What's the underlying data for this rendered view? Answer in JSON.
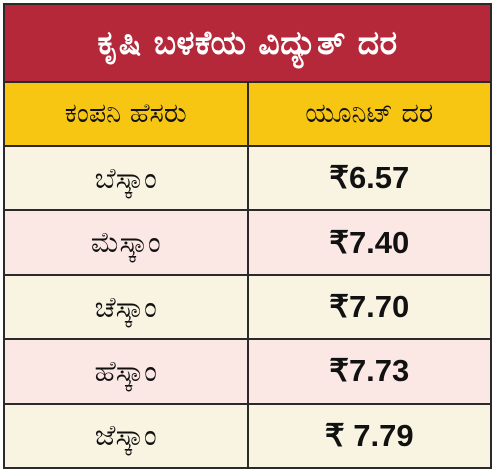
{
  "title": "ಕೃಷಿ ಬಳಕೆಯ ವಿದ್ಯುತ್ ದರ",
  "headers": [
    "ಕಂಪನಿ ಹೆಸರು",
    "ಯೂನಿಟ್ ದರ"
  ],
  "rows": [
    {
      "company": "ಬೆಸ್ಕಾಂ",
      "rate": "₹6.57"
    },
    {
      "company": "ಮೆಸ್ಕಾಂ",
      "rate": "₹7.40"
    },
    {
      "company": "ಚೆಸ್ಕಾಂ",
      "rate": "₹7.70"
    },
    {
      "company": "ಹೆಸ್ಕಾಂ",
      "rate": "₹7.73"
    },
    {
      "company": "ಜೆಸ್ಕಾಂ",
      "rate": "₹ 7.79"
    }
  ],
  "colors": {
    "title_bg": "#b5283a",
    "header_bg": "#f7c613",
    "row_cream": "#f8f4e1",
    "row_pink": "#fbe7e4",
    "border": "#2a2a2a"
  }
}
